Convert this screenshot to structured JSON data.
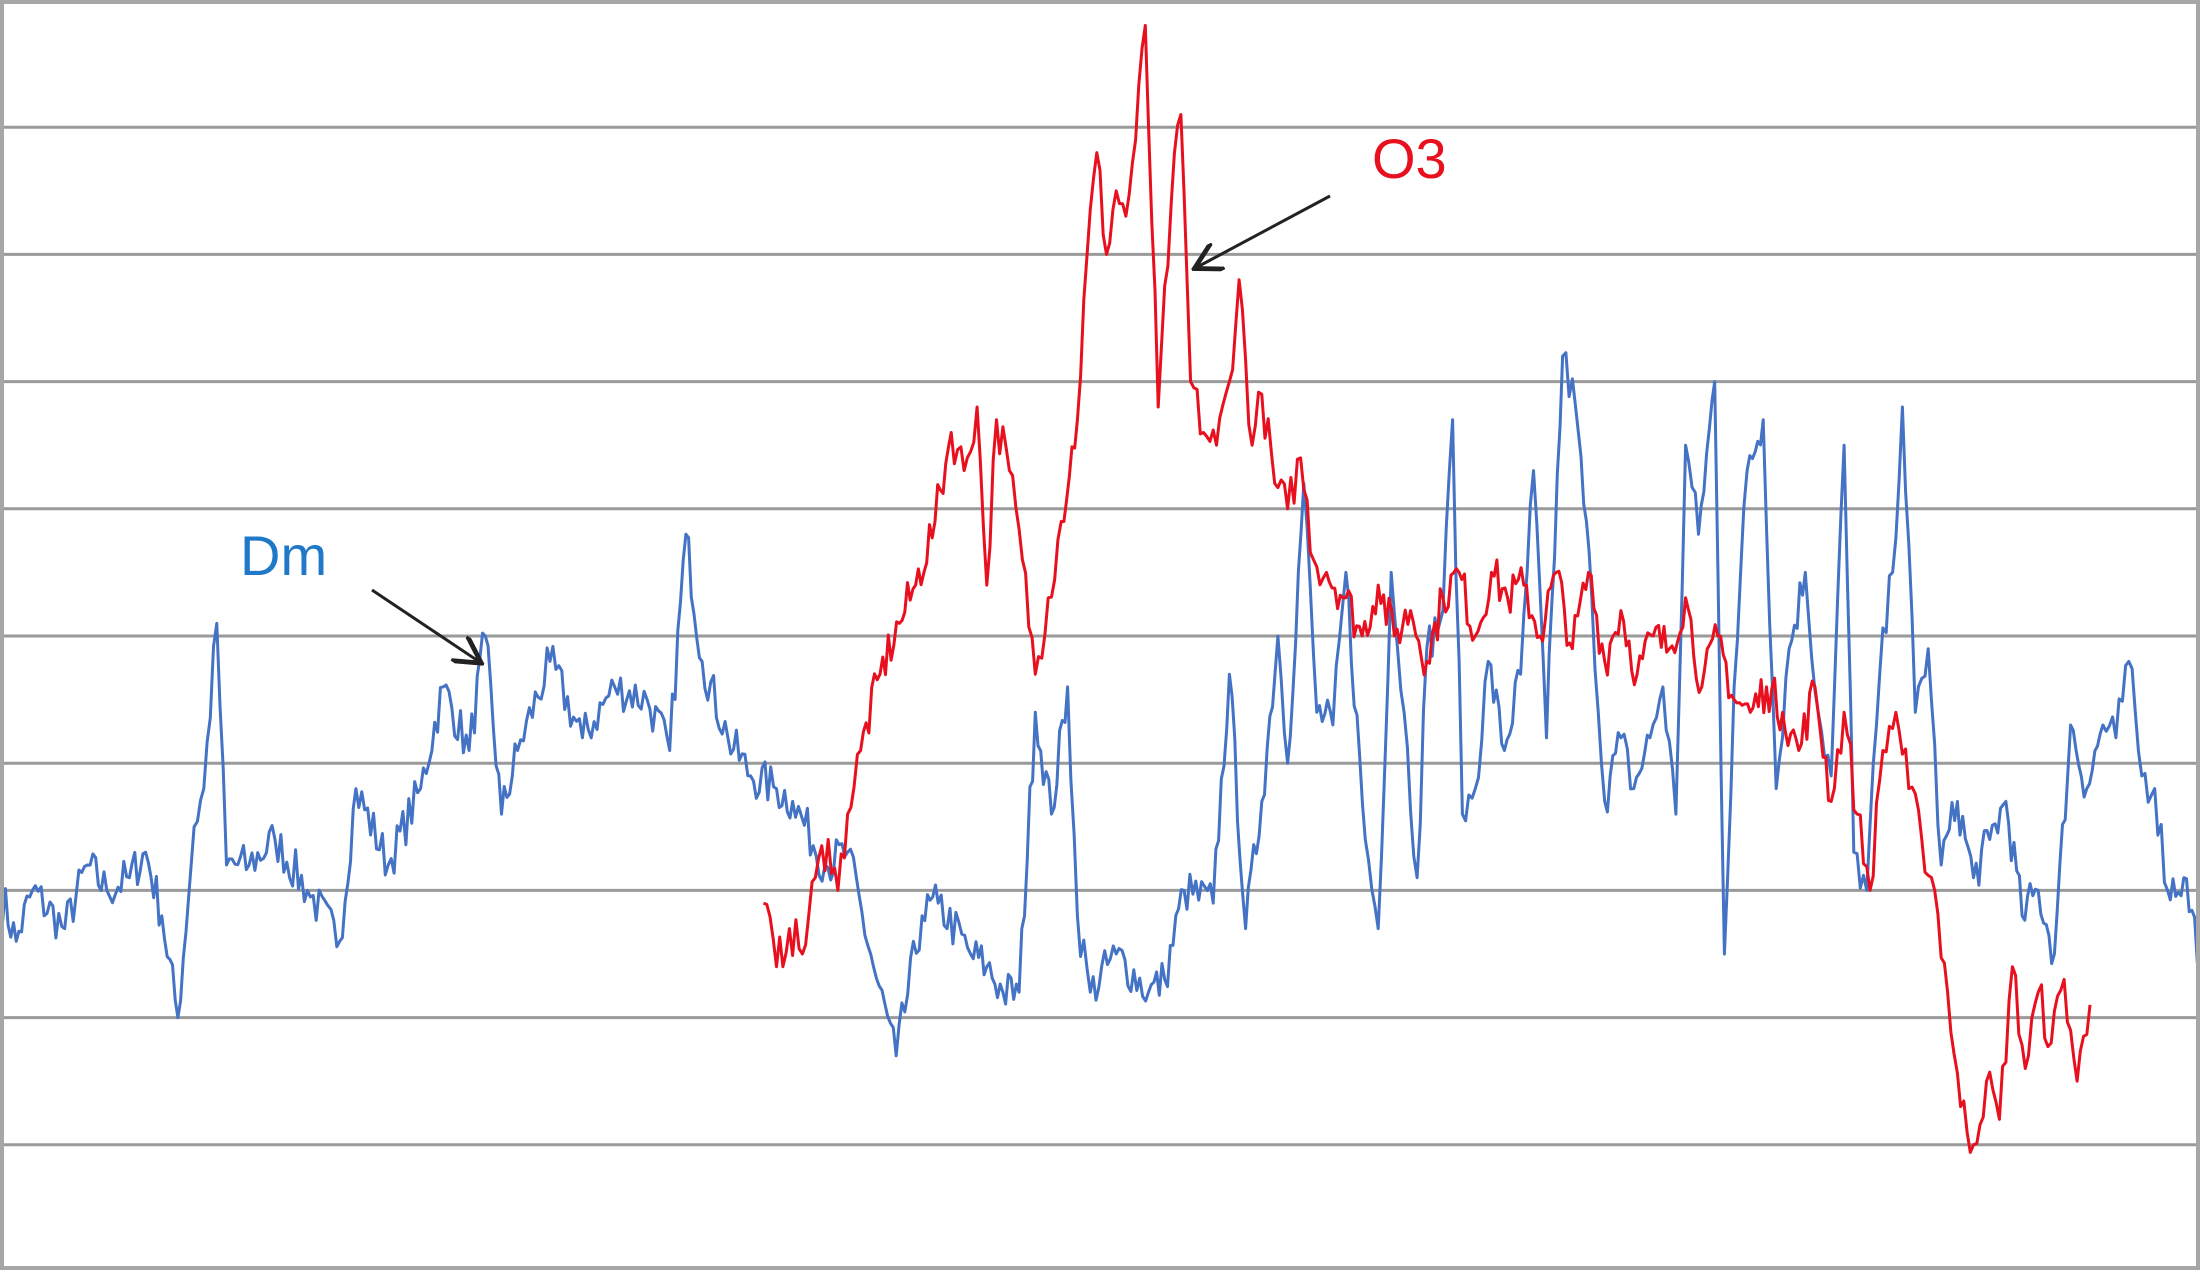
{
  "chart_data": {
    "type": "line",
    "title": "",
    "xlabel": "",
    "ylabel": "",
    "x_range": [
      0,
      680
    ],
    "ylim": [
      0,
      10
    ],
    "grid": true,
    "horizontal_gridlines": [
      1,
      2,
      3,
      4,
      5,
      6,
      7,
      8,
      9
    ],
    "annotations": [
      {
        "text": "Dm",
        "series": "Dm",
        "color": "#1f78c8",
        "points_to": [
          148,
          4.8
        ]
      },
      {
        "text": "O3",
        "series": "O3",
        "color": "#e8101e",
        "points_to": [
          370,
          7.9
        ]
      }
    ],
    "series": [
      {
        "name": "Dm",
        "color": "#4472c4",
        "anchors": [
          [
            0,
            3.0
          ],
          [
            5,
            2.6
          ],
          [
            10,
            3.0
          ],
          [
            20,
            2.7
          ],
          [
            27,
            3.2
          ],
          [
            33,
            3.0
          ],
          [
            40,
            3.1
          ],
          [
            45,
            3.3
          ],
          [
            50,
            2.8
          ],
          [
            55,
            2.0
          ],
          [
            60,
            3.5
          ],
          [
            63,
            3.8
          ],
          [
            67,
            5.1
          ],
          [
            70,
            3.2
          ],
          [
            77,
            3.2
          ],
          [
            85,
            3.4
          ],
          [
            95,
            3.0
          ],
          [
            105,
            2.6
          ],
          [
            110,
            3.8
          ],
          [
            120,
            3.2
          ],
          [
            130,
            3.8
          ],
          [
            137,
            4.6
          ],
          [
            145,
            4.1
          ],
          [
            150,
            5.0
          ],
          [
            155,
            3.6
          ],
          [
            160,
            4.1
          ],
          [
            170,
            4.8
          ],
          [
            180,
            4.2
          ],
          [
            190,
            4.6
          ],
          [
            200,
            4.5
          ],
          [
            207,
            4.1
          ],
          [
            212,
            5.8
          ],
          [
            217,
            4.8
          ],
          [
            225,
            4.2
          ],
          [
            232,
            3.9
          ],
          [
            240,
            3.8
          ],
          [
            245,
            3.7
          ],
          [
            255,
            3.2
          ],
          [
            262,
            3.3
          ],
          [
            270,
            2.4
          ],
          [
            277,
            1.7
          ],
          [
            285,
            2.8
          ],
          [
            290,
            2.9
          ],
          [
            300,
            2.5
          ],
          [
            305,
            2.4
          ],
          [
            310,
            2.2
          ],
          [
            315,
            2.2
          ],
          [
            320,
            4.4
          ],
          [
            325,
            3.6
          ],
          [
            330,
            4.6
          ],
          [
            333,
            2.8
          ],
          [
            337,
            2.2
          ],
          [
            345,
            2.5
          ],
          [
            355,
            2.2
          ],
          [
            360,
            2.3
          ],
          [
            366,
            3.0
          ],
          [
            375,
            2.9
          ],
          [
            380,
            4.7
          ],
          [
            385,
            2.7
          ],
          [
            390,
            3.7
          ],
          [
            395,
            5.0
          ],
          [
            398,
            4.0
          ],
          [
            403,
            6.2
          ],
          [
            407,
            4.4
          ],
          [
            412,
            4.3
          ],
          [
            416,
            5.5
          ],
          [
            422,
            3.4
          ],
          [
            426,
            2.7
          ],
          [
            430,
            5.5
          ],
          [
            434,
            4.4
          ],
          [
            438,
            3.1
          ],
          [
            441,
            4.9
          ],
          [
            446,
            5.2
          ],
          [
            449,
            6.7
          ],
          [
            452,
            3.6
          ],
          [
            456,
            3.8
          ],
          [
            460,
            4.8
          ],
          [
            465,
            4.1
          ],
          [
            470,
            4.7
          ],
          [
            474,
            6.3
          ],
          [
            478,
            4.2
          ],
          [
            483,
            7.2
          ],
          [
            487,
            6.8
          ],
          [
            492,
            5.3
          ],
          [
            496,
            3.7
          ],
          [
            501,
            4.2
          ],
          [
            505,
            3.8
          ],
          [
            510,
            4.2
          ],
          [
            514,
            4.6
          ],
          [
            518,
            3.6
          ],
          [
            521,
            6.5
          ],
          [
            525,
            5.8
          ],
          [
            530,
            7.0
          ],
          [
            533,
            2.5
          ],
          [
            536,
            4.6
          ],
          [
            540,
            6.3
          ],
          [
            545,
            6.7
          ],
          [
            549,
            3.8
          ],
          [
            553,
            4.9
          ],
          [
            558,
            5.5
          ],
          [
            562,
            4.4
          ],
          [
            566,
            3.9
          ],
          [
            570,
            6.5
          ],
          [
            573,
            3.3
          ],
          [
            577,
            3.0
          ],
          [
            581,
            4.7
          ],
          [
            585,
            5.5
          ],
          [
            588,
            6.8
          ],
          [
            592,
            4.4
          ],
          [
            596,
            4.9
          ],
          [
            600,
            3.2
          ],
          [
            605,
            3.7
          ],
          [
            610,
            3.1
          ],
          [
            615,
            3.4
          ],
          [
            620,
            3.7
          ],
          [
            625,
            2.8
          ],
          [
            630,
            3.0
          ],
          [
            635,
            2.5
          ],
          [
            640,
            4.3
          ],
          [
            645,
            3.8
          ],
          [
            650,
            4.3
          ],
          [
            654,
            4.2
          ],
          [
            658,
            4.8
          ],
          [
            662,
            3.9
          ],
          [
            666,
            3.8
          ],
          [
            670,
            3.0
          ],
          [
            675,
            3.1
          ],
          [
            680,
            2.5
          ]
        ]
      },
      {
        "name": "O3",
        "color": "#e8101e",
        "anchors": [
          [
            236,
            2.9
          ],
          [
            240,
            2.4
          ],
          [
            244,
            2.7
          ],
          [
            248,
            2.5
          ],
          [
            252,
            3.1
          ],
          [
            256,
            3.4
          ],
          [
            259,
            3.0
          ],
          [
            262,
            3.6
          ],
          [
            266,
            4.1
          ],
          [
            272,
            4.7
          ],
          [
            278,
            5.1
          ],
          [
            283,
            5.4
          ],
          [
            289,
            5.9
          ],
          [
            294,
            6.6
          ],
          [
            298,
            6.3
          ],
          [
            302,
            6.8
          ],
          [
            305,
            5.4
          ],
          [
            308,
            6.7
          ],
          [
            312,
            6.3
          ],
          [
            316,
            5.6
          ],
          [
            320,
            4.7
          ],
          [
            324,
            5.3
          ],
          [
            328,
            5.9
          ],
          [
            333,
            6.7
          ],
          [
            336,
            8.0
          ],
          [
            339,
            8.8
          ],
          [
            342,
            8.0
          ],
          [
            345,
            8.5
          ],
          [
            348,
            8.3
          ],
          [
            351,
            8.9
          ],
          [
            354,
            9.8
          ],
          [
            358,
            6.8
          ],
          [
            362,
            8.4
          ],
          [
            365,
            9.1
          ],
          [
            368,
            7.0
          ],
          [
            372,
            6.6
          ],
          [
            376,
            6.5
          ],
          [
            380,
            7.0
          ],
          [
            383,
            7.8
          ],
          [
            387,
            6.5
          ],
          [
            390,
            6.9
          ],
          [
            394,
            6.2
          ],
          [
            398,
            6.0
          ],
          [
            402,
            6.4
          ],
          [
            406,
            5.6
          ],
          [
            410,
            5.5
          ],
          [
            416,
            5.3
          ],
          [
            421,
            5.0
          ],
          [
            426,
            5.4
          ],
          [
            431,
            5.0
          ],
          [
            436,
            5.2
          ],
          [
            441,
            4.8
          ],
          [
            446,
            5.3
          ],
          [
            451,
            5.5
          ],
          [
            456,
            5.0
          ],
          [
            461,
            5.5
          ],
          [
            466,
            5.3
          ],
          [
            471,
            5.4
          ],
          [
            476,
            5.0
          ],
          [
            481,
            5.5
          ],
          [
            486,
            4.9
          ],
          [
            491,
            5.5
          ],
          [
            496,
            4.8
          ],
          [
            501,
            5.2
          ],
          [
            506,
            4.7
          ],
          [
            511,
            5.0
          ],
          [
            516,
            4.9
          ],
          [
            521,
            5.3
          ],
          [
            526,
            4.6
          ],
          [
            531,
            5.0
          ],
          [
            536,
            4.5
          ],
          [
            541,
            4.4
          ],
          [
            546,
            4.6
          ],
          [
            551,
            4.4
          ],
          [
            556,
            4.1
          ],
          [
            561,
            4.6
          ],
          [
            566,
            3.7
          ],
          [
            570,
            4.4
          ],
          [
            574,
            3.6
          ],
          [
            578,
            3.0
          ],
          [
            582,
            4.1
          ],
          [
            586,
            4.4
          ],
          [
            590,
            3.8
          ],
          [
            594,
            3.4
          ],
          [
            598,
            3.0
          ],
          [
            602,
            2.2
          ],
          [
            606,
            1.3
          ],
          [
            610,
            1.0
          ],
          [
            614,
            1.5
          ],
          [
            618,
            1.2
          ],
          [
            622,
            2.4
          ],
          [
            626,
            1.6
          ],
          [
            630,
            2.2
          ],
          [
            634,
            1.8
          ],
          [
            638,
            2.3
          ],
          [
            642,
            1.5
          ],
          [
            646,
            2.1
          ]
        ]
      }
    ]
  }
}
